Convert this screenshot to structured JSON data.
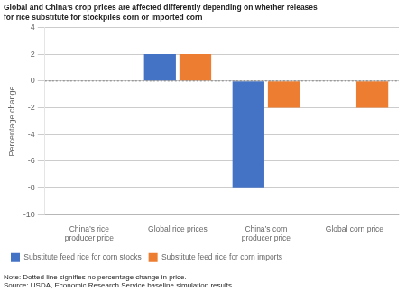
{
  "chart_data": {
    "type": "bar",
    "title": "Global and China’s crop prices are affected differently depending on whether releases\nfor rice substitute for stockpiles corn or imported corn",
    "ylabel": "Percentage change",
    "categories": [
      "China’s rice\nproducer price",
      "Global rice prices",
      "China’s corn\nproducer price",
      "Global corn price"
    ],
    "series": [
      {
        "name": "Substitute feed rice for corn stocks",
        "color": "#4472C4",
        "values": [
          0.0,
          2.0,
          -8.0,
          0.0
        ]
      },
      {
        "name": "Substitute feed rice for corn imports",
        "color": "#ED7D31",
        "values": [
          0.0,
          2.0,
          -2.0,
          -2.0
        ]
      }
    ],
    "ylim": [
      -10,
      4
    ],
    "yticks": [
      -10,
      -8,
      -6,
      -4,
      -2,
      0,
      2,
      4
    ],
    "grid": true,
    "legend": "bottom",
    "annotations": [
      "Note: Dotted line signifies no percentage change in price.\nSource: USDA, Economic Research Service baseline simulation results."
    ]
  }
}
